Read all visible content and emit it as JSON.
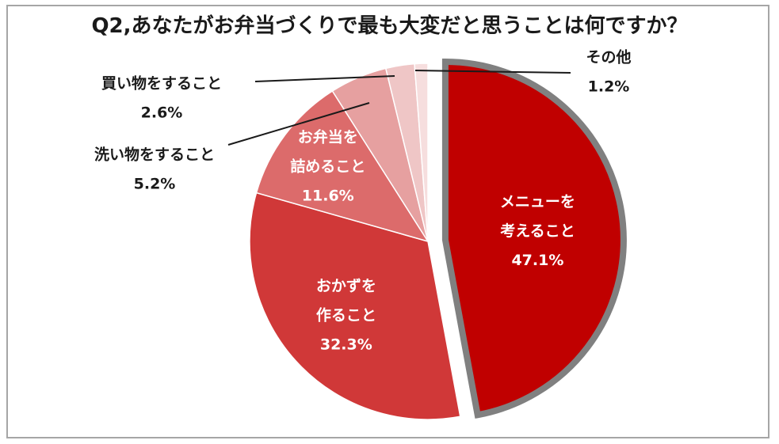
{
  "chart_data": {
    "type": "pie",
    "title": "Q2,あなたがお弁当づくりで最も大変だと思うことは何ですか？",
    "unit": "%",
    "slices": [
      {
        "label_lines": [
          "メニューを",
          "考えること"
        ],
        "value": 47.1,
        "value_text": "47.1%",
        "color": "#c00000",
        "exploded": true,
        "highlight_border": "#808080",
        "label_position": "inside"
      },
      {
        "label_lines": [
          "おかずを",
          "作ること"
        ],
        "value": 32.3,
        "value_text": "32.3%",
        "color": "#d03838",
        "exploded": false,
        "label_position": "inside"
      },
      {
        "label_lines": [
          "お弁当を",
          "詰めること"
        ],
        "value": 11.6,
        "value_text": "11.6%",
        "color": "#dc6b6b",
        "exploded": false,
        "label_position": "inside"
      },
      {
        "label_lines": [
          "洗い物をすること"
        ],
        "value": 5.2,
        "value_text": "5.2%",
        "color": "#e6a0a0",
        "exploded": false,
        "label_position": "outside"
      },
      {
        "label_lines": [
          "買い物をすること"
        ],
        "value": 2.6,
        "value_text": "2.6%",
        "color": "#efc6c6",
        "exploded": false,
        "label_position": "outside"
      },
      {
        "label_lines": [
          "その他"
        ],
        "value": 1.2,
        "value_text": "1.2%",
        "color": "#f6dede",
        "exploded": false,
        "label_position": "outside"
      }
    ],
    "legend": "none",
    "start": "12 o'clock, clockwise"
  }
}
